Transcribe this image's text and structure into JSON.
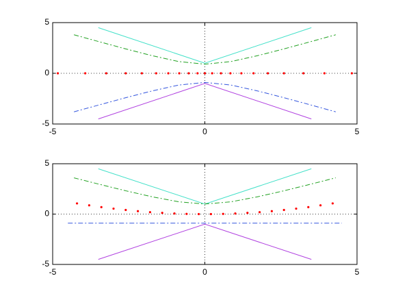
{
  "chart_data": [
    {
      "type": "line",
      "xlim": [
        -5,
        5
      ],
      "ylim": [
        -5,
        5
      ],
      "xticks": [
        -5,
        0,
        5
      ],
      "yticks": [
        -5,
        0,
        5
      ],
      "origin_lines": true,
      "series": [
        {
          "color": "#40e0c8",
          "linestyle": "solid",
          "x": [
            -3.5,
            0,
            3.5
          ],
          "values": [
            4.5,
            1,
            4.5
          ]
        },
        {
          "color": "#20a020",
          "linestyle": "dashdot",
          "x": [
            -4.3,
            -3.44,
            -2.58,
            -1.72,
            -0.86,
            0,
            0.86,
            1.72,
            2.58,
            3.44,
            4.3
          ],
          "values": [
            3.8,
            3.09,
            2.39,
            1.73,
            1.16,
            0.9,
            1.16,
            1.73,
            2.39,
            3.09,
            3.8
          ]
        },
        {
          "color": "#ff0000",
          "linestyle": "dots",
          "x": [
            -4.83,
            -3.93,
            -3.24,
            -2.6,
            -2.07,
            -1.6,
            -1.2,
            -0.84,
            -0.53,
            -0.24,
            0,
            0.24,
            0.53,
            0.84,
            1.2,
            1.6,
            2.07,
            2.6,
            3.24,
            3.93,
            4.83
          ],
          "values": [
            0,
            0,
            0,
            0,
            0,
            0,
            0,
            0,
            0,
            0,
            0,
            0,
            0,
            0,
            0,
            0,
            0,
            0,
            0,
            0,
            0
          ]
        },
        {
          "color": "#3355dd",
          "linestyle": "dashdot",
          "x": [
            -4.3,
            -3.44,
            -2.58,
            -1.72,
            -0.86,
            0,
            0.86,
            1.72,
            2.58,
            3.44,
            4.3
          ],
          "values": [
            -3.8,
            -3.09,
            -2.39,
            -1.73,
            -1.16,
            -0.9,
            -1.16,
            -1.73,
            -2.39,
            -3.09,
            -3.8
          ]
        },
        {
          "color": "#b040e0",
          "linestyle": "solid",
          "x": [
            -3.5,
            0,
            3.5
          ],
          "values": [
            -4.5,
            -1,
            -4.5
          ]
        }
      ]
    },
    {
      "type": "line",
      "xlim": [
        -5,
        5
      ],
      "ylim": [
        -5,
        5
      ],
      "xticks": [
        -5,
        0,
        5
      ],
      "yticks": [
        -5,
        0,
        5
      ],
      "origin_lines": true,
      "series": [
        {
          "color": "#40e0c8",
          "linestyle": "solid",
          "x": [
            -3.5,
            0,
            3.5
          ],
          "values": [
            4.5,
            1,
            4.5
          ]
        },
        {
          "color": "#20a020",
          "linestyle": "dashdot",
          "x": [
            -4.3,
            -3.44,
            -2.58,
            -1.72,
            -0.86,
            0,
            0.86,
            1.72,
            2.58,
            3.44,
            4.3
          ],
          "values": [
            3.6,
            2.94,
            2.3,
            1.71,
            1.22,
            1,
            1.22,
            1.71,
            2.3,
            2.94,
            3.6
          ]
        },
        {
          "color": "#ff0000",
          "linestyle": "dots",
          "x": [
            -4.2,
            -3.8,
            -3.4,
            -3.0,
            -2.6,
            -2.2,
            -1.8,
            -1.4,
            -1.0,
            -0.6,
            -0.2,
            0.2,
            0.6,
            1.0,
            1.4,
            1.8,
            2.2,
            2.6,
            3.0,
            3.4,
            3.8,
            4.2
          ],
          "values": [
            1.06,
            0.87,
            0.69,
            0.54,
            0.41,
            0.29,
            0.19,
            0.12,
            0.06,
            0.02,
            0,
            0,
            0.02,
            0.06,
            0.12,
            0.19,
            0.29,
            0.41,
            0.54,
            0.69,
            0.87,
            1.06
          ]
        },
        {
          "color": "#3355dd",
          "linestyle": "dashdot",
          "x": [
            -4.5,
            4.5
          ],
          "values": [
            -0.9,
            -0.9
          ]
        },
        {
          "color": "#b040e0",
          "linestyle": "solid",
          "x": [
            -3.5,
            0,
            3.5
          ],
          "values": [
            -4.5,
            -1,
            -4.5
          ]
        }
      ]
    }
  ]
}
